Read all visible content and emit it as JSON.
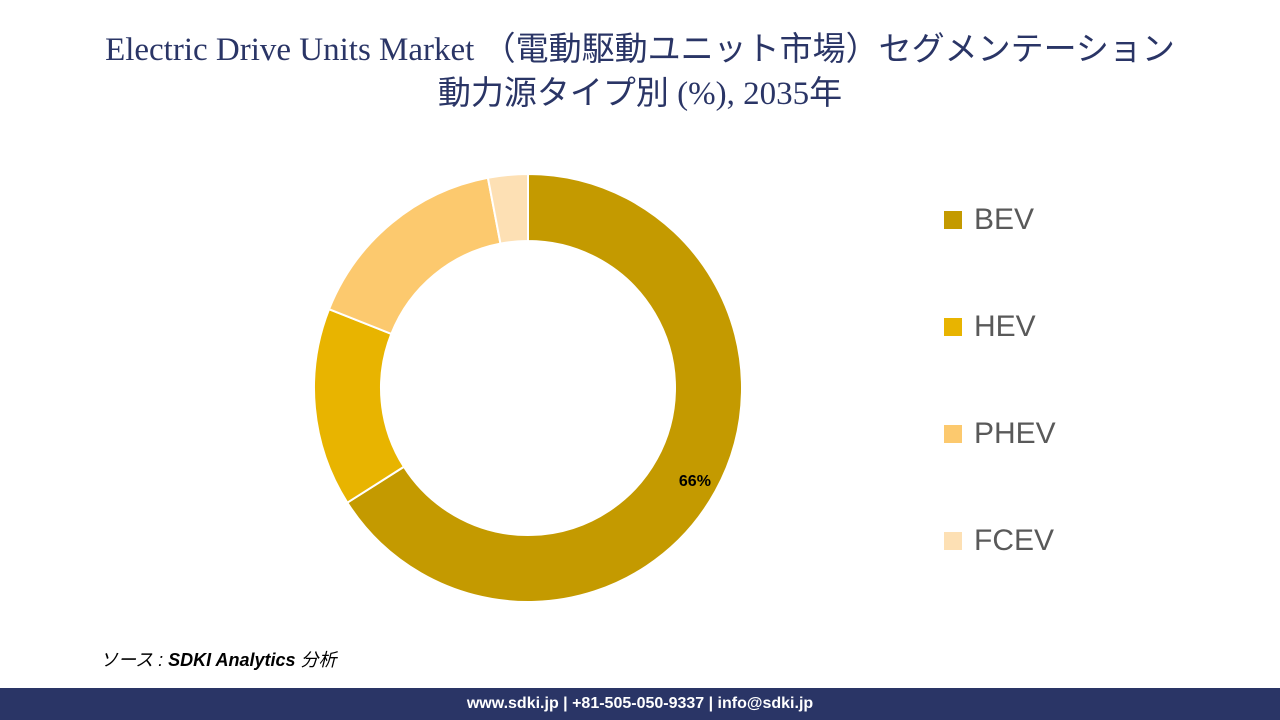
{
  "chart_data": {
    "type": "pie",
    "donut": true,
    "title_line1": "Electric Drive Units Market （電動駆動ユニット市場）セグメンテーション",
    "title_line2": "動力源タイプ別 (%), 2035年",
    "categories": [
      "BEV",
      "HEV",
      "PHEV",
      "FCEV"
    ],
    "values": [
      66,
      15,
      16,
      3
    ],
    "colors": [
      "#c49a00",
      "#e8b400",
      "#fcc96e",
      "#fde0b4"
    ],
    "data_labels": [
      "66%",
      "",
      "",
      ""
    ],
    "legend_position": "right"
  },
  "source": {
    "prefix": "ソース : ",
    "name": "SDKI Analytics",
    "suffix": " 分析"
  },
  "footer": {
    "text": "www.sdki.jp | +81-505-050-9337 | info@sdki.jp"
  }
}
